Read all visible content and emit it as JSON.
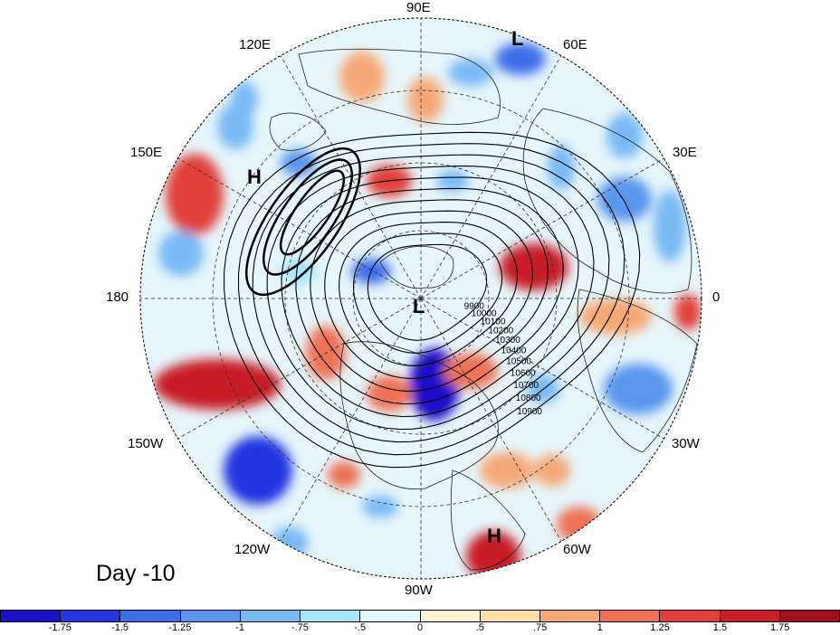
{
  "map": {
    "projection": "north-polar-stereographic",
    "title": "",
    "day_label": "Day -10",
    "longitude_labels": [
      "90E",
      "60E",
      "30E",
      "0",
      "30W",
      "60W",
      "90W",
      "120W",
      "150W",
      "180",
      "150E",
      "120E"
    ],
    "contour_labels": [
      "10900",
      "10800",
      "10700",
      "10600",
      "10500",
      "10400",
      "10300",
      "10200",
      "10100",
      "10000",
      "9900"
    ],
    "pressure_centers": [
      {
        "label": "L",
        "location": "near 80E, high latitude"
      },
      {
        "label": "H",
        "location": "northeast Pacific near 145E"
      },
      {
        "label": "L",
        "location": "north pole region"
      },
      {
        "label": "H",
        "location": "South America / tropical Atlantic near 65W"
      }
    ]
  },
  "colorbar": {
    "tick_labels": [
      "-1.75",
      "-1.5",
      "-1.25",
      "-1",
      "-.75",
      "-.5",
      "0",
      ".5",
      ".75",
      "1",
      "1.25",
      "1.5",
      "1.75"
    ],
    "colors": [
      "#1e0fc8",
      "#2336e0",
      "#3c6ee8",
      "#5a96ee",
      "#78b9f4",
      "#a8e6fa",
      "#e4f8fc",
      "#fdf5d2",
      "#fde0a6",
      "#f5a876",
      "#ee7256",
      "#e2403a",
      "#c81e28",
      "#a01020"
    ]
  }
}
